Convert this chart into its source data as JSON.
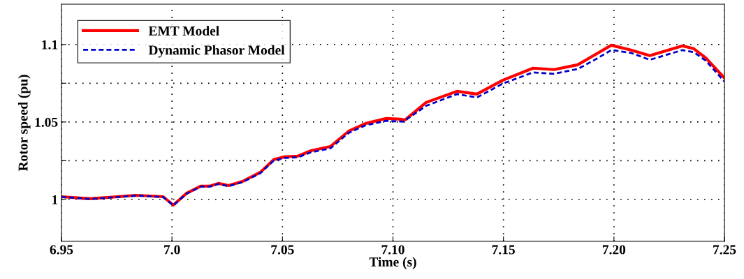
{
  "chart_data": {
    "type": "line",
    "xlabel": "Time (s)",
    "ylabel": "Rotor speed (pu)",
    "xlim": [
      6.95,
      7.25
    ],
    "ylim": [
      0.973,
      1.126
    ],
    "xticks": [
      6.95,
      {
        "value": 7.0,
        "label": "7.0"
      },
      7.05,
      {
        "value": 7.1,
        "label": "7.10"
      },
      7.15,
      {
        "value": 7.2,
        "label": "7.20"
      },
      7.25
    ],
    "yticks": [
      1,
      {
        "value": 1.025,
        "label": null
      },
      1.05,
      {
        "value": 1.075,
        "label": null
      },
      1.1
    ],
    "grid": true,
    "legend": "top left",
    "marker": "none",
    "series": [
      {
        "name": "EMT Model",
        "color": "#ff0000",
        "line_style": "solid",
        "x": [
          6.95,
          6.963,
          6.984,
          6.996,
          7.0006,
          7.0066,
          7.013,
          7.017,
          7.021,
          7.0256,
          7.032,
          7.04,
          7.046,
          7.0509,
          7.057,
          7.063,
          7.0717,
          7.08,
          7.0875,
          7.097,
          7.1033,
          7.1055,
          7.115,
          7.129,
          7.138,
          7.1498,
          7.1634,
          7.1729,
          7.1836,
          7.1918,
          7.1988,
          7.2077,
          7.2162,
          7.231,
          7.2361,
          7.2415,
          7.25
        ],
        "values": [
          1.0018,
          1.0005,
          1.0027,
          1.0018,
          0.9964,
          1.004,
          1.0086,
          1.0086,
          1.0104,
          1.009,
          1.0117,
          1.0176,
          1.0257,
          1.0275,
          1.028,
          1.0315,
          1.0342,
          1.0441,
          1.049,
          1.0523,
          1.0518,
          1.0514,
          1.0626,
          1.0698,
          1.068,
          1.077,
          1.0847,
          1.0838,
          1.0869,
          1.0937,
          1.0995,
          1.0964,
          1.0928,
          1.0991,
          1.0973,
          1.0914,
          1.0784
        ]
      },
      {
        "name": "Dynamic Phasor Model",
        "color": "#0000cc",
        "line_style": "dashed",
        "x": [
          6.95,
          6.963,
          6.984,
          6.996,
          7.0006,
          7.0066,
          7.013,
          7.017,
          7.021,
          7.0256,
          7.032,
          7.04,
          7.046,
          7.0509,
          7.057,
          7.063,
          7.0717,
          7.08,
          7.0875,
          7.097,
          7.1033,
          7.1046,
          7.115,
          7.129,
          7.138,
          7.1498,
          7.1634,
          7.1729,
          7.1836,
          7.1918,
          7.1988,
          7.2077,
          7.2162,
          7.231,
          7.2361,
          7.2415,
          7.25
        ],
        "values": [
          1.0016,
          1.0003,
          1.0025,
          1.0016,
          0.9962,
          1.0037,
          1.0083,
          1.0083,
          1.01,
          1.0086,
          1.0112,
          1.017,
          1.025,
          1.0268,
          1.0272,
          1.0305,
          1.033,
          1.043,
          1.0478,
          1.0508,
          1.0503,
          1.0502,
          1.0604,
          1.068,
          1.0658,
          1.0748,
          1.082,
          1.0811,
          1.0842,
          1.0905,
          1.0964,
          1.0946,
          1.0901,
          1.0964,
          1.095,
          1.0896,
          1.0761
        ]
      }
    ]
  }
}
